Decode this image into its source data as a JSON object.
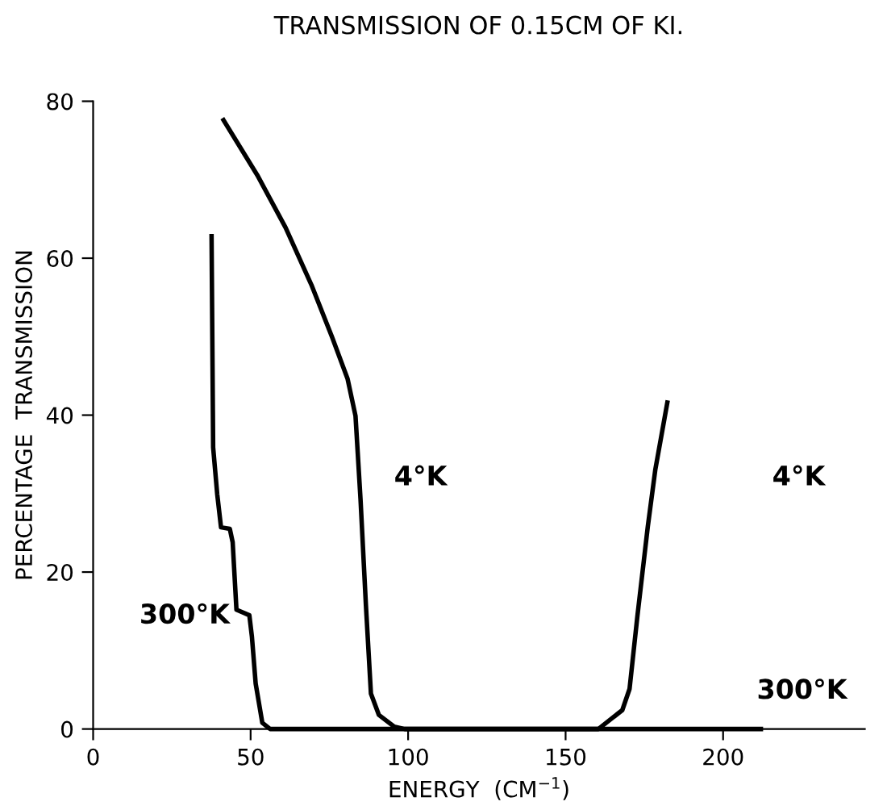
{
  "chart_data": {
    "type": "line",
    "title": "TRANSMISSION OF 0.15CM OF KI.",
    "xlabel": "ENERGY  (CM$^{−1}$)",
    "ylabel": "PERCENTAGE  TRANSMISSION",
    "xlim": [
      0,
      245
    ],
    "ylim": [
      0,
      80
    ],
    "xticks": [
      0,
      50,
      100,
      150,
      200
    ],
    "yticks": [
      0,
      20,
      40,
      60,
      80
    ],
    "grid": false,
    "legend": false,
    "marker": "none",
    "line_style": "solid",
    "series": [
      {
        "color": "#000000",
        "x": [
          37.6,
          38.1,
          39.4,
          40.6,
          43.4,
          44.3,
          45.5,
          49.6,
          50.4,
          51.6,
          53.7,
          56.2,
          212
        ],
        "values": [
          62.8,
          35.9,
          29.9,
          25.7,
          25.5,
          23.8,
          15.2,
          14.5,
          11.8,
          5.8,
          0.8,
          0,
          0
        ]
      },
      {
        "color": "#000000",
        "x": [
          41.4,
          52.1,
          61.1,
          69.3,
          75.9,
          80.8,
          83.3,
          84.9,
          86.6,
          88.2,
          90.7,
          95.6,
          98.9,
          160.4,
          168,
          170.3,
          172.8,
          176.1,
          178.5,
          182.3
        ],
        "values": [
          77.6,
          70.6,
          63.9,
          56.6,
          49.9,
          44.6,
          39.9,
          29.2,
          15.8,
          4.5,
          1.8,
          0.3,
          0,
          0,
          2.4,
          5.1,
          14.4,
          25.8,
          33.1,
          41.6
        ]
      }
    ],
    "annotations": [
      "300°K",
      "4°K",
      "4°K",
      "300°K"
    ]
  }
}
